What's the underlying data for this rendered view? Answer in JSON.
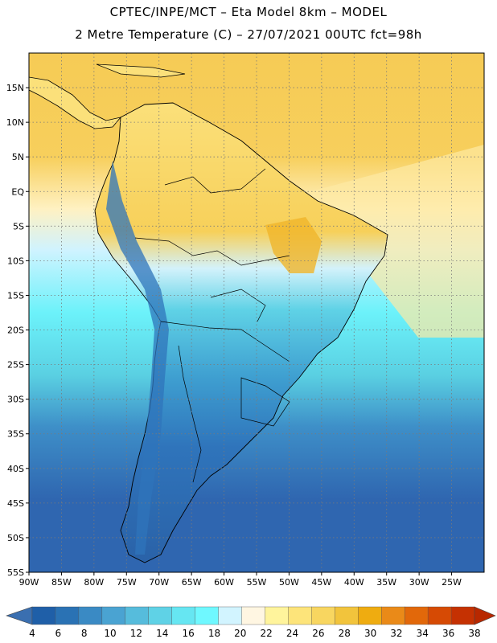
{
  "title_line1": "CPTEC/INPE/MCT  –  Eta Model 8km  –  MODEL",
  "title_line2": "2 Metre Temperature (C) – 27/07/2021 00UTC fct=98h",
  "map": {
    "lon_min": -90,
    "lon_max": -20,
    "lat_min": -55,
    "lat_max": 20,
    "lon_ticks": [
      {
        "value": -90,
        "label": "90W"
      },
      {
        "value": -85,
        "label": "85W"
      },
      {
        "value": -80,
        "label": "80W"
      },
      {
        "value": -75,
        "label": "75W"
      },
      {
        "value": -70,
        "label": "70W"
      },
      {
        "value": -65,
        "label": "65W"
      },
      {
        "value": -60,
        "label": "60W"
      },
      {
        "value": -55,
        "label": "55W"
      },
      {
        "value": -50,
        "label": "50W"
      },
      {
        "value": -45,
        "label": "45W"
      },
      {
        "value": -40,
        "label": "40W"
      },
      {
        "value": -35,
        "label": "35W"
      },
      {
        "value": -30,
        "label": "30W"
      },
      {
        "value": -25,
        "label": "25W"
      }
    ],
    "lat_ticks": [
      {
        "value": 15,
        "label": "15N"
      },
      {
        "value": 10,
        "label": "10N"
      },
      {
        "value": 5,
        "label": "5N"
      },
      {
        "value": 0,
        "label": "EQ"
      },
      {
        "value": -5,
        "label": "5S"
      },
      {
        "value": -10,
        "label": "10S"
      },
      {
        "value": -15,
        "label": "15S"
      },
      {
        "value": -20,
        "label": "20S"
      },
      {
        "value": -25,
        "label": "25S"
      },
      {
        "value": -30,
        "label": "30S"
      },
      {
        "value": -35,
        "label": "35S"
      },
      {
        "value": -40,
        "label": "40S"
      },
      {
        "value": -45,
        "label": "45S"
      },
      {
        "value": -50,
        "label": "50S"
      },
      {
        "value": -55,
        "label": "55S"
      }
    ]
  },
  "colorbar": {
    "labels": [
      "4",
      "6",
      "8",
      "10",
      "12",
      "14",
      "16",
      "18",
      "20",
      "22",
      "24",
      "26",
      "28",
      "30",
      "32",
      "34",
      "36",
      "38"
    ],
    "colors": [
      "#1f5fa8",
      "#2a72b4",
      "#3a8ac4",
      "#4aa3d2",
      "#56bcdc",
      "#5fd2e6",
      "#66e6f2",
      "#6ff8ff",
      "#d2f4ff",
      "#fff6e2",
      "#fff49c",
      "#fde47a",
      "#f8d660",
      "#f2c43c",
      "#efac10",
      "#ea8a18",
      "#e2680a",
      "#d64a04",
      "#c53102"
    ],
    "low_extension_color": "#3a6fb0",
    "high_extension_color": "#b82800"
  },
  "palette": {
    "ocean_cold": "#2f66b0",
    "ocean_cool": "#3e8fc8",
    "ocean_mild": "#5ad0e2",
    "ocean_cyan": "#6cf2fa",
    "ocean_pale": "#cff3ff",
    "ocean_warm": "#fff1c2",
    "ocean_hot": "#f6cb55",
    "land_hot": "#f4c64a",
    "land_warm": "#fbe07a",
    "land_mild": "#d3f2fb",
    "land_cool": "#5fd2e6",
    "land_cold": "#2f74bb",
    "border": "#000000",
    "grid": "#7a7a7a"
  }
}
